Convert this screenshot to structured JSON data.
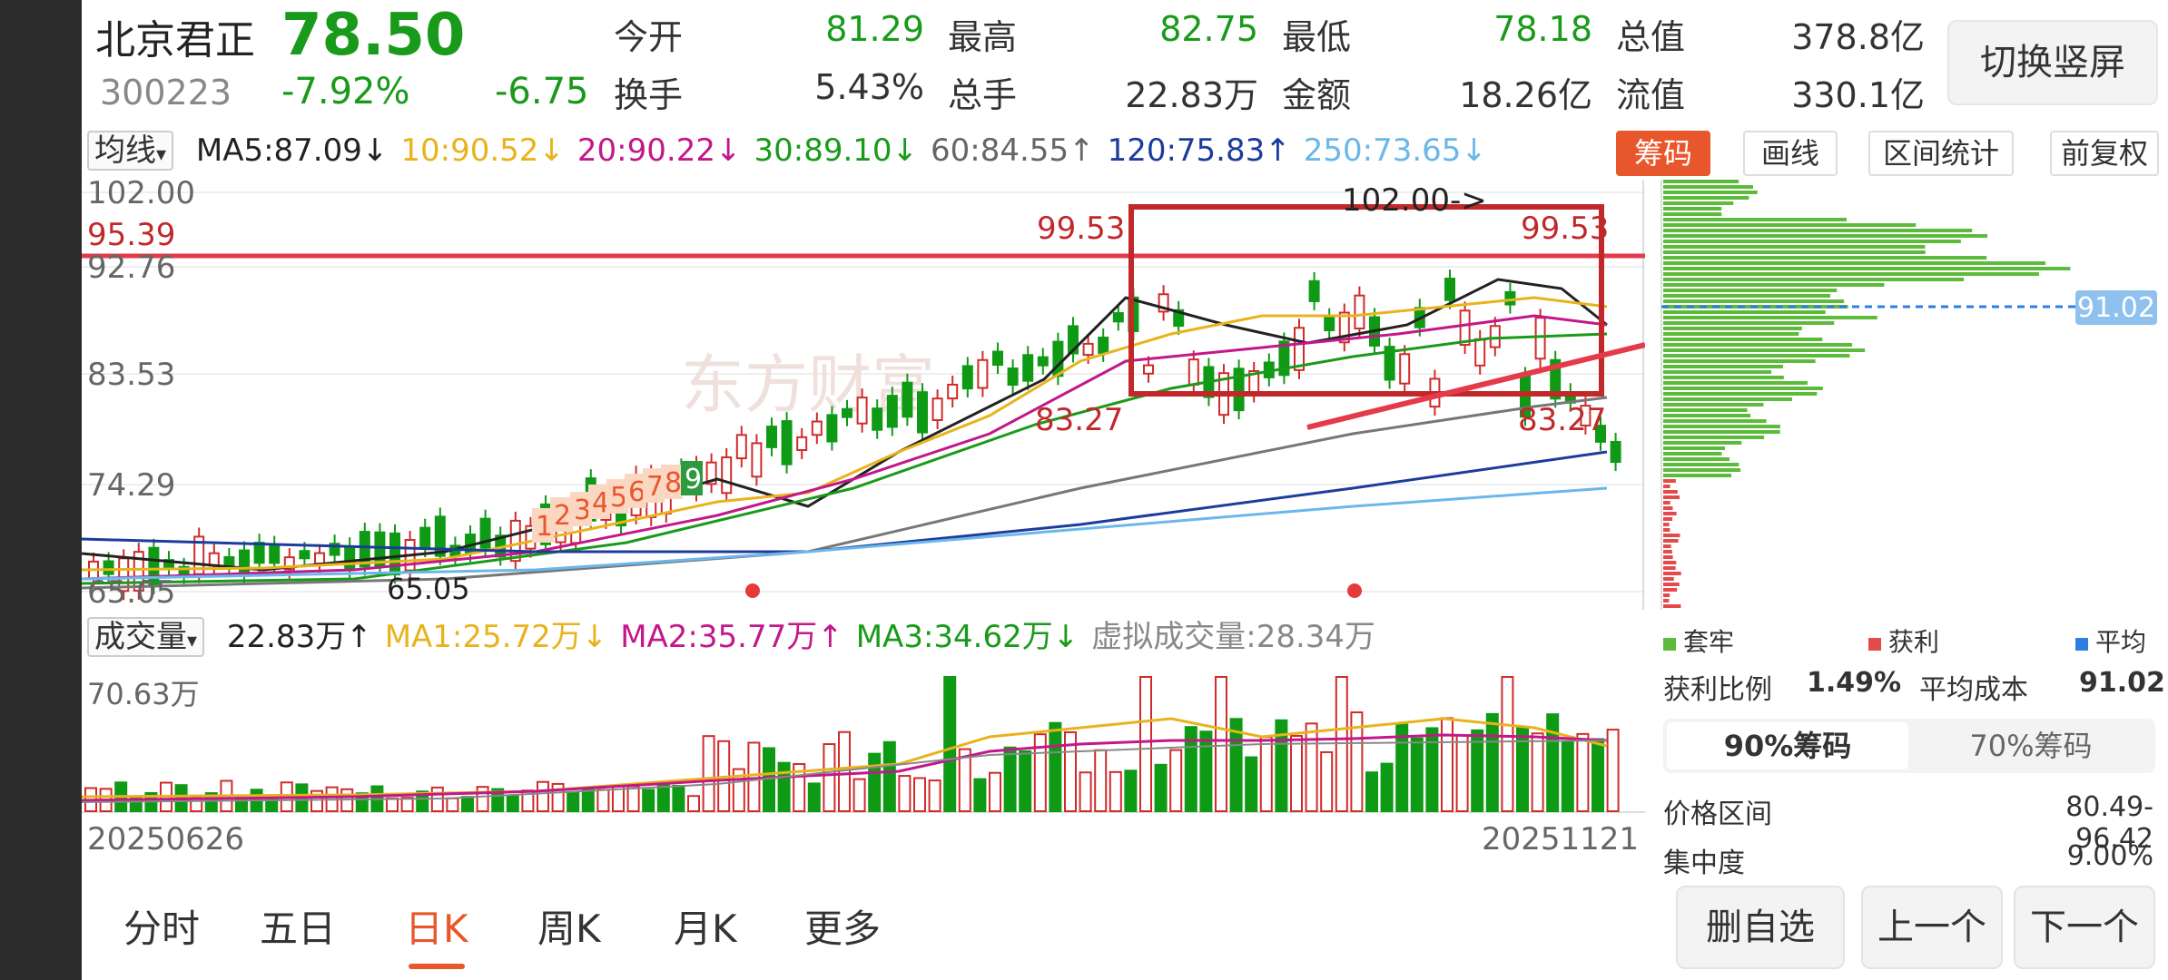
{
  "stock": {
    "name": "北京君正",
    "price": "78.50",
    "code": "300223",
    "change_pct": "-7.92%",
    "change_amt": "-6.75"
  },
  "stats": [
    {
      "label": "今开",
      "value": "81.29",
      "color": "#1a9a1a"
    },
    {
      "label": "最高",
      "value": "82.75",
      "color": "#1a9a1a"
    },
    {
      "label": "最低",
      "value": "78.18",
      "color": "#1a9a1a"
    },
    {
      "label": "总值",
      "value": "378.8亿",
      "color": "#333"
    },
    {
      "label": "换手",
      "value": "5.43%",
      "color": "#333"
    },
    {
      "label": "总手",
      "value": "22.83万",
      "color": "#333"
    },
    {
      "label": "金额",
      "value": "18.26亿",
      "color": "#333"
    },
    {
      "label": "流值",
      "value": "330.1亿",
      "color": "#333"
    }
  ],
  "switch_button": "切换竖屏",
  "ma": {
    "selector": "均线",
    "items": [
      {
        "text": "MA5:87.09↓",
        "color": "#222"
      },
      {
        "text": "10:90.52↓",
        "color": "#e8b31c"
      },
      {
        "text": "20:90.22↓",
        "color": "#c2188a"
      },
      {
        "text": "30:89.10↓",
        "color": "#1a9a1a"
      },
      {
        "text": "60:84.55↑",
        "color": "#666666"
      },
      {
        "text": "120:75.83↑",
        "color": "#1c3c9c"
      },
      {
        "text": "250:73.65↓",
        "color": "#6bb7ea"
      }
    ]
  },
  "tags": [
    "筹码",
    "画线",
    "区间统计",
    "前复权"
  ],
  "price_axis": [
    "102.00",
    "95.39",
    "92.76",
    "83.53",
    "74.29",
    "65.05"
  ],
  "annotations": {
    "left_high": "99.53",
    "right_high": "99.53",
    "top_label": "102.00->",
    "left_low": "83.27",
    "right_low": "83.27",
    "bottom_low": "65.05",
    "cost_badge": "91.02",
    "sequence": [
      "1",
      "2",
      "3",
      "4",
      "5",
      "6",
      "7",
      "8",
      "9"
    ]
  },
  "watermark": "东方财富",
  "volume": {
    "selector": "成交量",
    "items": [
      {
        "text": "22.83万↑",
        "color": "#222"
      },
      {
        "text": "MA1:25.72万↓",
        "color": "#e8b31c"
      },
      {
        "text": "MA2:35.77万↑",
        "color": "#c2188a"
      },
      {
        "text": "MA3:34.62万↓",
        "color": "#1a9a1a"
      },
      {
        "text": "虚拟成交量:28.34万",
        "color": "#888888"
      }
    ],
    "axis_label": "70.63万"
  },
  "dates": {
    "start": "20250626",
    "end": "20251121"
  },
  "chips": {
    "legend": [
      {
        "label": "套牢",
        "color": "#5dbb3b"
      },
      {
        "label": "获利",
        "color": "#e34a4a"
      },
      {
        "label": "平均",
        "color": "#2c7fe0"
      }
    ],
    "profit_label": "获利比例",
    "profit_value": "1.49%",
    "avg_label": "平均成本",
    "avg_value": "91.02",
    "tabs": [
      "90%筹码",
      "70%筹码"
    ],
    "range_label": "价格区间",
    "range_value": "80.49-96.42",
    "conc_label": "集中度",
    "conc_value": "9.00%"
  },
  "bottom_tabs": [
    "分时",
    "五日",
    "日K",
    "周K",
    "月K",
    "更多"
  ],
  "actions": [
    "删自选",
    "上一个",
    "下一个"
  ]
}
